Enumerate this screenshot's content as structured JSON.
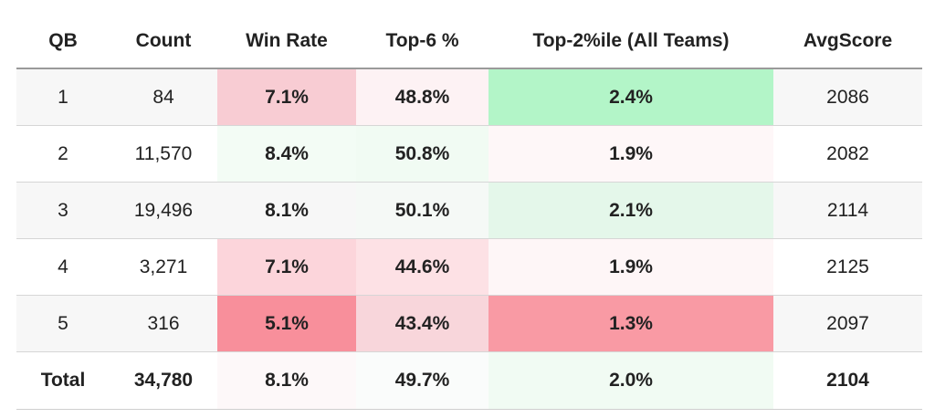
{
  "table": {
    "headers": [
      "QB",
      "Count",
      "Win Rate",
      "Top-6 %",
      "Top-2%ile (All Teams)",
      "AvgScore"
    ],
    "rows": [
      {
        "qb": "1",
        "count": "84",
        "win_rate": "7.1%",
        "win_rate_color": "#f8ccd3",
        "top6": "48.8%",
        "top6_color": "#fdf2f4",
        "top2": "2.4%",
        "top2_color": "#b3f5c8",
        "avg_score": "2086"
      },
      {
        "qb": "2",
        "count": "11,570",
        "win_rate": "8.4%",
        "win_rate_color": "#f3fcf5",
        "top6": "50.8%",
        "top6_color": "#f1fbf3",
        "top2": "1.9%",
        "top2_color": "#fef7f8",
        "avg_score": "2082"
      },
      {
        "qb": "3",
        "count": "19,496",
        "win_rate": "8.1%",
        "win_rate_color": "#f7f7f7",
        "top6": "50.1%",
        "top6_color": "#f5f9f6",
        "top2": "2.1%",
        "top2_color": "#e4f7ea",
        "avg_score": "2114"
      },
      {
        "qb": "4",
        "count": "3,271",
        "win_rate": "7.1%",
        "win_rate_color": "#fcd5db",
        "top6": "44.6%",
        "top6_color": "#fde1e5",
        "top2": "1.9%",
        "top2_color": "#fef6f7",
        "avg_score": "2125"
      },
      {
        "qb": "5",
        "count": "316",
        "win_rate": "5.1%",
        "win_rate_color": "#f88f9b",
        "top6": "43.4%",
        "top6_color": "#f8d6db",
        "top2": "1.3%",
        "top2_color": "#f99aa4",
        "avg_score": "2097"
      }
    ],
    "total": {
      "qb": "Total",
      "count": "34,780",
      "win_rate": "8.1%",
      "win_rate_color": "#fdf8f9",
      "top6": "49.7%",
      "top6_color": "#fafcfb",
      "top2": "2.0%",
      "top2_color": "#f1fbf3",
      "avg_score": "2104"
    }
  }
}
